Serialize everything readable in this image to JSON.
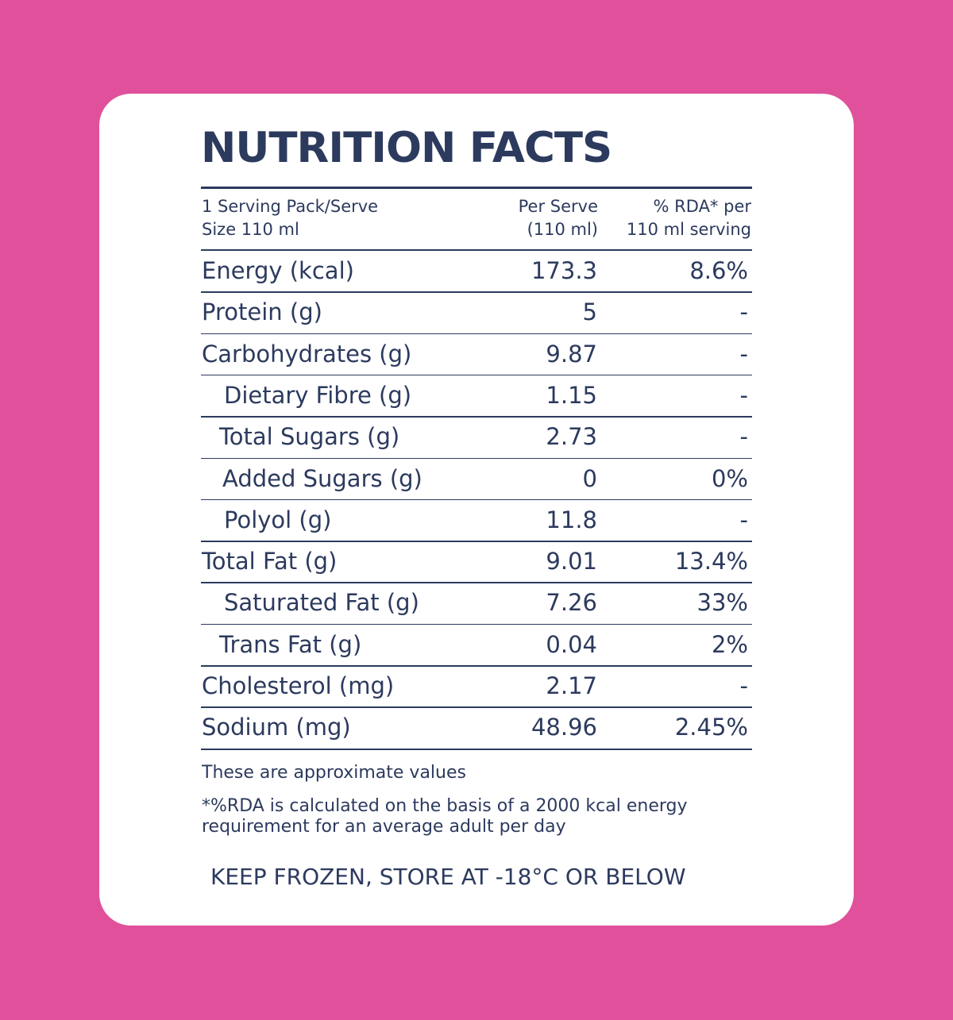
{
  "title": "NUTRITION FACTS",
  "table": {
    "header": [
      [
        "1 Serving Pack/Serve",
        "Size 110 ml"
      ],
      [
        "Per Serve",
        "(110 ml)"
      ],
      [
        "% RDA* per",
        "110 ml serving"
      ]
    ],
    "rows": [
      [
        "Energy (kcal)",
        "173.3",
        "8.6%"
      ],
      [
        "Protein (g)",
        "5",
        "-"
      ],
      [
        "Carbohydrates (g)",
        "9.87",
        "-"
      ],
      [
        "Dietary Fibre (g)",
        "1.15",
        "-"
      ],
      [
        "Total Sugars (g)",
        "2.73",
        "-"
      ],
      [
        "Added Sugars (g)",
        "0",
        "0%"
      ],
      [
        "Polyol (g)",
        "11.8",
        "-"
      ],
      [
        "Total Fat (g)",
        "9.01",
        "13.4%"
      ],
      [
        "Saturated Fat (g)",
        "7.26",
        "33%"
      ],
      [
        "Trans Fat (g)",
        "0.04",
        "2%"
      ],
      [
        "Cholesterol (mg)",
        "2.17",
        "-"
      ],
      [
        "Sodium (mg)",
        "48.96",
        "2.45%"
      ]
    ]
  },
  "notes": [
    "These are approximate values",
    [
      "*%RDA is calculated on the basis of a 2000 kcal energy",
      "requirement for an average adult per day"
    ]
  ],
  "storage": "KEEP FROZEN, STORE AT -18°C OR BELOW"
}
